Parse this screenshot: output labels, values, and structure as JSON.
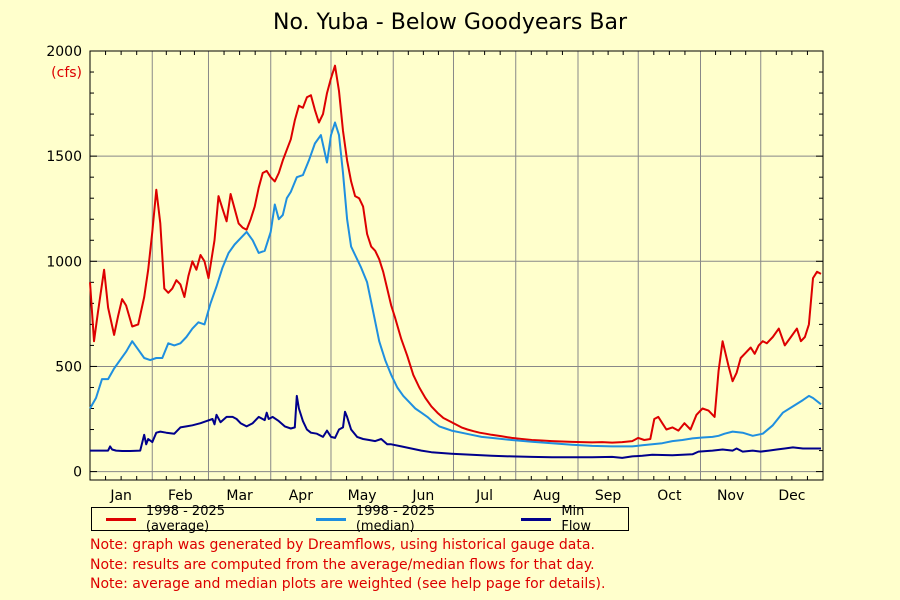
{
  "chart_data": {
    "type": "line",
    "title": "No. Yuba - Below Goodyears Bar",
    "ylabel": "(cfs)",
    "ylim": [
      -40,
      2000
    ],
    "yticks": [
      0,
      500,
      1000,
      1500,
      2000
    ],
    "ytick_labels": [
      "0",
      "500",
      "1000",
      "1500",
      "2000"
    ],
    "xlim": [
      0,
      365
    ],
    "month_labels": [
      "Jan",
      "Feb",
      "Mar",
      "Apr",
      "May",
      "Jun",
      "Jul",
      "Aug",
      "Sep",
      "Oct",
      "Nov",
      "Dec"
    ],
    "month_starts": [
      0,
      31,
      59,
      90,
      120,
      151,
      181,
      212,
      243,
      273,
      304,
      334,
      365
    ],
    "grid": true,
    "legend_position": "bottom-left",
    "series": [
      {
        "name": "1998 - 2025 (average)",
        "color": "#dd0000",
        "x": [
          0,
          2,
          4,
          7,
          9,
          12,
          14,
          16,
          18,
          21,
          24,
          27,
          29,
          31,
          33,
          35,
          37,
          39,
          41,
          43,
          45,
          47,
          49,
          51,
          53,
          55,
          57,
          59,
          60,
          62,
          64,
          66,
          68,
          70,
          72,
          74,
          76,
          78,
          80,
          82,
          84,
          86,
          88,
          90,
          92,
          94,
          96,
          98,
          100,
          102,
          104,
          106,
          108,
          110,
          112,
          114,
          116,
          118,
          120,
          122,
          124,
          126,
          128,
          130,
          132,
          134,
          136,
          138,
          140,
          142,
          144,
          146,
          148,
          150,
          152,
          155,
          158,
          161,
          164,
          167,
          170,
          173,
          176,
          179,
          182,
          185,
          188,
          191,
          194,
          197,
          200,
          205,
          210,
          215,
          220,
          225,
          230,
          235,
          240,
          245,
          250,
          255,
          260,
          265,
          270,
          273,
          276,
          279,
          281,
          283,
          285,
          287,
          290,
          293,
          296,
          299,
          302,
          305,
          308,
          311,
          313,
          315,
          318,
          320,
          322,
          324,
          326,
          329,
          331,
          333,
          335,
          337,
          340,
          343,
          346,
          349,
          352,
          354,
          356,
          358,
          360,
          362,
          364
        ],
        "values": [
          900,
          620,
          760,
          960,
          780,
          650,
          740,
          820,
          790,
          690,
          700,
          830,
          960,
          1140,
          1340,
          1180,
          870,
          850,
          870,
          910,
          890,
          830,
          930,
          1000,
          960,
          1030,
          1000,
          920,
          980,
          1100,
          1310,
          1250,
          1190,
          1320,
          1250,
          1180,
          1160,
          1150,
          1200,
          1260,
          1350,
          1420,
          1430,
          1400,
          1380,
          1420,
          1480,
          1530,
          1580,
          1670,
          1740,
          1730,
          1780,
          1790,
          1720,
          1660,
          1700,
          1800,
          1870,
          1930,
          1810,
          1620,
          1480,
          1380,
          1310,
          1300,
          1260,
          1130,
          1070,
          1050,
          1010,
          950,
          870,
          790,
          730,
          630,
          550,
          460,
          400,
          350,
          310,
          280,
          255,
          240,
          225,
          210,
          200,
          192,
          185,
          180,
          175,
          168,
          160,
          155,
          150,
          148,
          145,
          143,
          141,
          140,
          139,
          140,
          138,
          140,
          145,
          160,
          150,
          155,
          250,
          260,
          230,
          200,
          210,
          195,
          230,
          200,
          270,
          300,
          290,
          260,
          480,
          620,
          500,
          430,
          470,
          540,
          560,
          590,
          560,
          600,
          620,
          610,
          640,
          680,
          600,
          640,
          680,
          620,
          640,
          700,
          920,
          950,
          940
        ]
      },
      {
        "name": "1998 - 2025 (median)",
        "color": "#1f8fdf",
        "x": [
          0,
          3,
          6,
          9,
          12,
          15,
          18,
          21,
          24,
          27,
          30,
          33,
          36,
          39,
          42,
          45,
          48,
          51,
          54,
          57,
          60,
          63,
          66,
          69,
          72,
          75,
          78,
          81,
          84,
          87,
          90,
          92,
          94,
          96,
          98,
          100,
          103,
          106,
          109,
          112,
          115,
          118,
          120,
          122,
          124,
          126,
          128,
          130,
          132,
          135,
          138,
          141,
          144,
          147,
          150,
          153,
          156,
          159,
          162,
          165,
          168,
          171,
          174,
          177,
          180,
          185,
          190,
          195,
          200,
          210,
          220,
          230,
          240,
          250,
          260,
          270,
          275,
          280,
          285,
          290,
          295,
          300,
          305,
          310,
          313,
          316,
          320,
          325,
          330,
          335,
          340,
          345,
          350,
          355,
          358,
          360,
          364
        ],
        "values": [
          300,
          350,
          440,
          440,
          490,
          530,
          570,
          620,
          580,
          540,
          530,
          540,
          540,
          610,
          600,
          610,
          640,
          680,
          710,
          700,
          800,
          880,
          970,
          1040,
          1080,
          1110,
          1140,
          1100,
          1040,
          1050,
          1140,
          1270,
          1200,
          1220,
          1300,
          1330,
          1400,
          1410,
          1480,
          1560,
          1600,
          1470,
          1600,
          1660,
          1600,
          1420,
          1200,
          1070,
          1030,
          970,
          900,
          760,
          620,
          530,
          460,
          400,
          360,
          330,
          300,
          280,
          260,
          235,
          215,
          205,
          195,
          185,
          175,
          165,
          160,
          150,
          142,
          135,
          128,
          122,
          120,
          120,
          125,
          130,
          135,
          145,
          150,
          158,
          162,
          165,
          170,
          180,
          190,
          185,
          170,
          180,
          220,
          280,
          310,
          340,
          360,
          350,
          320
        ]
      },
      {
        "name": "Min Flow",
        "color": "#00008b",
        "x": [
          0,
          5,
          9,
          10,
          11,
          13,
          16,
          20,
          25,
          27,
          28,
          29,
          31,
          33,
          35,
          38,
          42,
          45,
          48,
          51,
          55,
          58,
          61,
          62,
          63,
          65,
          68,
          71,
          73,
          75,
          78,
          81,
          84,
          87,
          88,
          89,
          91,
          94,
          97,
          100,
          102,
          103,
          104,
          106,
          108,
          110,
          113,
          116,
          118,
          120,
          122,
          124,
          126,
          127,
          128,
          130,
          133,
          136,
          139,
          142,
          145,
          148,
          150,
          155,
          160,
          165,
          170,
          180,
          190,
          200,
          210,
          220,
          230,
          240,
          250,
          260,
          265,
          270,
          275,
          280,
          290,
          300,
          303,
          310,
          315,
          320,
          322,
          325,
          330,
          334,
          338,
          342,
          346,
          350,
          355,
          360,
          364
        ],
        "values": [
          100,
          100,
          100,
          120,
          105,
          100,
          98,
          98,
          100,
          175,
          130,
          155,
          140,
          185,
          190,
          185,
          180,
          210,
          215,
          220,
          230,
          240,
          250,
          225,
          270,
          235,
          260,
          260,
          250,
          230,
          215,
          230,
          260,
          245,
          280,
          250,
          260,
          240,
          215,
          205,
          210,
          360,
          300,
          240,
          200,
          185,
          180,
          165,
          195,
          165,
          160,
          200,
          210,
          285,
          260,
          200,
          165,
          155,
          150,
          145,
          155,
          130,
          130,
          120,
          110,
          100,
          92,
          85,
          80,
          75,
          72,
          70,
          68,
          68,
          68,
          70,
          65,
          72,
          75,
          80,
          78,
          82,
          95,
          100,
          105,
          100,
          110,
          95,
          100,
          95,
          100,
          105,
          110,
          115,
          110,
          110,
          110
        ]
      }
    ]
  },
  "legend": {
    "items": [
      {
        "label": "1998 - 2025 (average)",
        "color": "#dd0000"
      },
      {
        "label": "1998 - 2025 (median)",
        "color": "#1f8fdf"
      },
      {
        "label": "Min Flow",
        "color": "#00008b"
      }
    ]
  },
  "notes": [
    "Note: graph was generated by Dreamflows, using historical gauge data.",
    "Note: results are computed from the average/median flows for that day.",
    "Note: average and median plots are weighted (see help page for details)."
  ]
}
